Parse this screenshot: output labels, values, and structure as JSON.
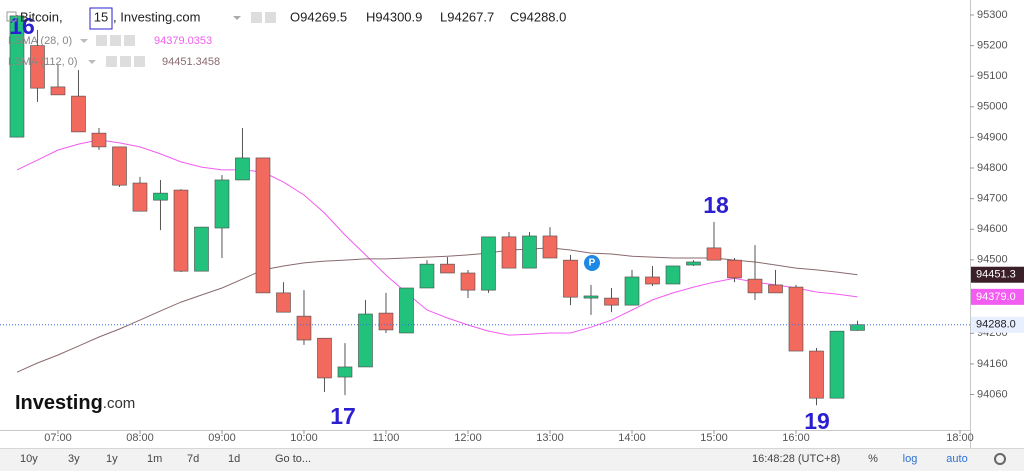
{
  "chart_data": {
    "type": "candlestick",
    "title_parts": [
      "Bitcoin,",
      "15",
      ", Investing.com"
    ],
    "ohlc_labels": [
      "O94269.5",
      "H94300.9",
      "L94267.7",
      "C94288.0"
    ],
    "x": [
      6.5,
      6.75,
      7,
      7.25,
      7.5,
      7.75,
      8,
      8.25,
      8.5,
      8.75,
      9,
      9.25,
      9.5,
      9.75,
      10,
      10.25,
      10.5,
      10.75,
      11,
      11.25,
      11.5,
      11.75,
      12,
      12.25,
      12.5,
      12.75,
      13,
      13.25,
      13.5,
      13.75,
      14,
      14.25,
      14.5,
      14.75,
      15,
      15.25,
      15.5,
      15.75,
      16,
      16.25,
      16.5,
      16.75
    ],
    "open": [
      94901,
      95200,
      95065,
      95035,
      94914,
      94869,
      94751,
      94695,
      94728,
      94463,
      94604,
      94761,
      94833,
      94392,
      94316,
      94244,
      94117,
      94150,
      94326,
      94261,
      94408,
      94486,
      94457,
      94401,
      94575,
      94473,
      94578,
      94499,
      94375,
      94375,
      94352,
      94444,
      94421,
      94483,
      94539,
      94499,
      94437,
      94418,
      94411,
      94202,
      94048,
      94269.5
    ],
    "high": [
      95300,
      95251,
      95137,
      95120,
      94931,
      94869,
      94771,
      94761,
      94731,
      94607,
      94777,
      94931,
      94833,
      94427,
      94401,
      94244,
      94228,
      94369,
      94392,
      94408,
      94499,
      94509,
      94467,
      94575,
      94591,
      94591,
      94607,
      94516,
      94418,
      94408,
      94467,
      94480,
      94480,
      94499,
      94624,
      94506,
      94548,
      94467,
      94418,
      94212,
      94267,
      94300.9
    ],
    "low": [
      94900,
      95016,
      95039,
      94918,
      94859,
      94738,
      94659,
      94597,
      94460,
      94463,
      94506,
      94761,
      94392,
      94329,
      94222,
      94068,
      94058,
      94150,
      94261,
      94261,
      94408,
      94457,
      94375,
      94392,
      94473,
      94473,
      94506,
      94352,
      94320,
      94329,
      94352,
      94414,
      94421,
      94480,
      94499,
      94427,
      94369,
      94392,
      94202,
      94025,
      94048,
      94267.7
    ],
    "close": [
      95297,
      95061,
      95039,
      94918,
      94869,
      94744,
      94659,
      94718,
      94463,
      94607,
      94761,
      94833,
      94392,
      94329,
      94238,
      94114,
      94150,
      94323,
      94271,
      94408,
      94486,
      94457,
      94401,
      94575,
      94473,
      94578,
      94506,
      94378,
      94382,
      94352,
      94444,
      94421,
      94480,
      94493,
      94499,
      94441,
      94392,
      94392,
      94202,
      94048,
      94267,
      94288.0
    ],
    "up_color": "#22c27c",
    "down_color": "#f26a5e",
    "last_price_label": "94288.0",
    "series": [
      {
        "name": "LSMA (28, 0)",
        "color": "#f25cf0",
        "value_label": "94379.0353",
        "axis_label": "94379.0",
        "values": [
          94794,
          94826,
          94859,
          94878,
          94892,
          94882,
          94869,
          94846,
          94820,
          94803,
          94794,
          94794,
          94787,
          94754,
          94712,
          94653,
          94581,
          94516,
          94450,
          94392,
          94336,
          94310,
          94287,
          94267,
          94254,
          94257,
          94261,
          94261,
          94280,
          94303,
          94336,
          94369,
          94392,
          94411,
          94427,
          94440,
          94427,
          94418,
          94408,
          94395,
          94388,
          94379.0353
        ]
      },
      {
        "name": "LSMA (112, 0)",
        "color": "#8a6a6e",
        "value_label": "94451.3458",
        "axis_label": "94451.3",
        "values": [
          94133,
          94163,
          94189,
          94218,
          94248,
          94274,
          94303,
          94333,
          94362,
          94385,
          94408,
          94437,
          94467,
          94480,
          94490,
          94496,
          94499,
          94503,
          94503,
          94506,
          94509,
          94512,
          94516,
          94522,
          94532,
          94535,
          94539,
          94532,
          94522,
          94519,
          94512,
          94509,
          94506,
          94506,
          94506,
          94499,
          94493,
          94483,
          94473,
          94467,
          94460,
          94451.3458
        ]
      }
    ],
    "xlim": [
      6.293,
      18.122
    ],
    "xticks": [
      {
        "value": 7,
        "label": "07:00"
      },
      {
        "value": 8,
        "label": "08:00"
      },
      {
        "value": 9,
        "label": "09:00"
      },
      {
        "value": 10,
        "label": "10:00"
      },
      {
        "value": 11,
        "label": "11:00"
      },
      {
        "value": 12,
        "label": "12:00"
      },
      {
        "value": 13,
        "label": "13:00"
      },
      {
        "value": 14,
        "label": "14:00"
      },
      {
        "value": 15,
        "label": "15:00"
      },
      {
        "value": 16,
        "label": "16:00"
      },
      {
        "value": 18,
        "label": "18:00"
      }
    ],
    "ylim": [
      93944,
      95349
    ],
    "yticks": [
      95300,
      95200,
      95100,
      95000,
      94900,
      94800,
      94700,
      94600,
      94500,
      94260,
      94160,
      94060
    ],
    "grid": false,
    "annotations": [
      "16",
      "17",
      "18",
      "19"
    ],
    "event_marker": "P",
    "logo": [
      "Investing",
      ".com"
    ],
    "toolbar": {
      "periods": [
        "10y",
        "3y",
        "1y",
        "1m",
        "7d",
        "1d",
        "Go to..."
      ],
      "clock": "16:48:28 (UTC+8)",
      "options": [
        "%",
        "log",
        "auto"
      ]
    }
  }
}
